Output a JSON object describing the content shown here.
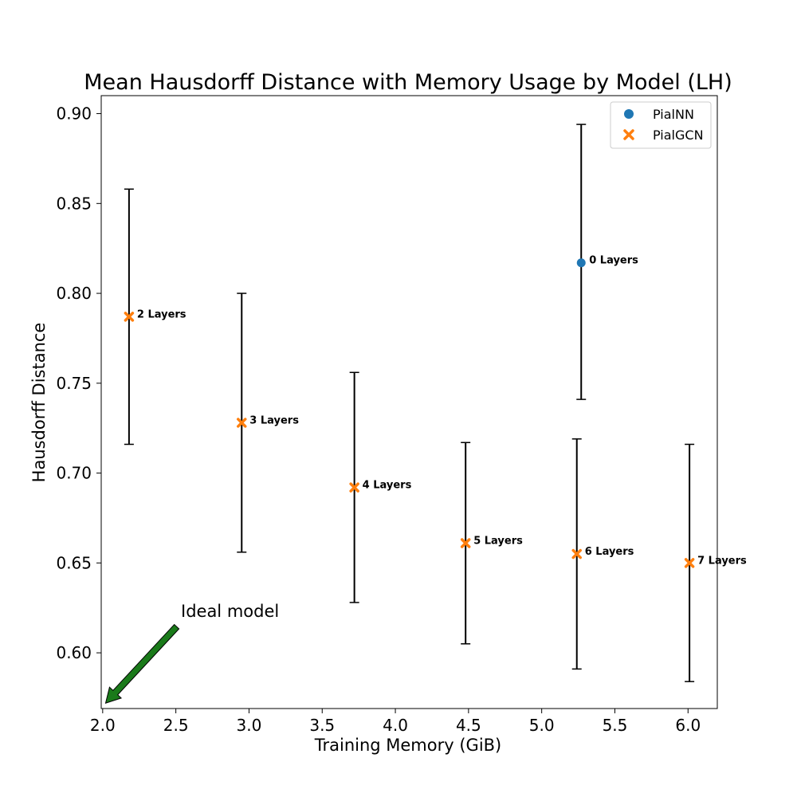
{
  "chart_data": {
    "type": "scatter",
    "title": "Mean Hausdorff Distance with Memory Usage by Model (LH)",
    "xlabel": "Training Memory (GiB)",
    "ylabel": "Hausdorff Distance",
    "xlim": [
      1.99,
      6.2
    ],
    "ylim": [
      0.569,
      0.91
    ],
    "xticks": [
      2.0,
      2.5,
      3.0,
      3.5,
      4.0,
      4.5,
      5.0,
      5.5,
      6.0
    ],
    "xtick_labels": [
      "2.0",
      "2.5",
      "3.0",
      "3.5",
      "4.0",
      "4.5",
      "5.0",
      "5.5",
      "6.0"
    ],
    "yticks": [
      0.6,
      0.65,
      0.7,
      0.75,
      0.8,
      0.85,
      0.9
    ],
    "ytick_labels": [
      "0.60",
      "0.65",
      "0.70",
      "0.75",
      "0.80",
      "0.85",
      "0.90"
    ],
    "grid": false,
    "legend_position": "top-right",
    "series": [
      {
        "name": "PialNN",
        "marker": "circle",
        "color": "#1f77b4",
        "points": [
          {
            "x": 5.27,
            "y": 0.817,
            "err_low": 0.741,
            "err_high": 0.894,
            "label": "0 Layers"
          }
        ]
      },
      {
        "name": "PialGCN",
        "marker": "x",
        "color": "#ff7f0e",
        "points": [
          {
            "x": 2.18,
            "y": 0.787,
            "err_low": 0.716,
            "err_high": 0.858,
            "label": "2 Layers"
          },
          {
            "x": 2.95,
            "y": 0.728,
            "err_low": 0.656,
            "err_high": 0.8,
            "label": "3 Layers"
          },
          {
            "x": 3.72,
            "y": 0.692,
            "err_low": 0.628,
            "err_high": 0.756,
            "label": "4 Layers"
          },
          {
            "x": 4.48,
            "y": 0.661,
            "err_low": 0.605,
            "err_high": 0.717,
            "label": "5 Layers"
          },
          {
            "x": 5.24,
            "y": 0.655,
            "err_low": 0.591,
            "err_high": 0.719,
            "label": "6 Layers"
          },
          {
            "x": 6.01,
            "y": 0.65,
            "err_low": 0.584,
            "err_high": 0.716,
            "label": "7 Layers"
          }
        ]
      }
    ],
    "annotation": {
      "text": "Ideal model",
      "arrow_from": {
        "x": 2.5,
        "y": 0.615
      },
      "arrow_to": {
        "x": 2.02,
        "y": 0.572
      },
      "arrow_color": "#1a7a1a"
    },
    "errorbar_color": "#000000"
  }
}
